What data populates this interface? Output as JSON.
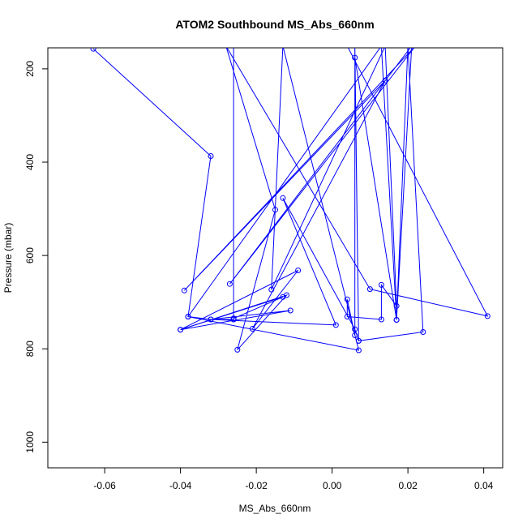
{
  "chart_data": {
    "type": "line",
    "title": "ATOM2 Southbound MS_Abs_660nm",
    "xlabel": "MS_Abs_660nm",
    "ylabel": "Pressure (mbar)",
    "xlim": [
      -0.075,
      0.045
    ],
    "ylim": [
      1055,
      155
    ],
    "y_reversed": true,
    "grid": false,
    "legend": "none",
    "x_ticks": [
      -0.06,
      -0.04,
      -0.02,
      0.0,
      0.02,
      0.04
    ],
    "x_tick_labels": [
      "-0.06",
      "-0.04",
      "-0.02",
      "0.00",
      "0.02",
      "0.04"
    ],
    "y_ticks": [
      200,
      400,
      600,
      800,
      1000
    ],
    "y_tick_labels": [
      "200",
      "400",
      "600",
      "800",
      "1000"
    ],
    "series": [
      {
        "color": "#0000ff",
        "marker": "open-circle",
        "points": [
          [
            -0.063,
            157
          ],
          [
            -0.032,
            387
          ],
          [
            -0.038,
            731
          ],
          [
            -0.032,
            737
          ],
          [
            -0.026,
            737
          ],
          [
            -0.026,
            151
          ],
          [
            -0.026,
            737
          ],
          [
            -0.026,
            735
          ],
          [
            -0.013,
            689
          ],
          [
            -0.04,
            759
          ],
          [
            -0.011,
            718
          ],
          [
            -0.032,
            737
          ],
          [
            0.001,
            749
          ],
          [
            -0.013,
            477
          ],
          [
            0.006,
            758
          ],
          [
            0.007,
            783
          ],
          [
            0.006,
            151
          ],
          [
            0.006,
            771
          ],
          [
            0.004,
            694
          ],
          [
            0.004,
            731
          ],
          [
            0.013,
            737
          ],
          [
            0.013,
            663
          ],
          [
            0.017,
            708
          ],
          [
            0.014,
            151
          ],
          [
            -0.016,
            673
          ],
          [
            -0.013,
            151
          ],
          [
            0.007,
            803
          ],
          [
            -0.038,
            731
          ],
          [
            0.013,
            151
          ],
          [
            0.017,
            738
          ],
          [
            0.02,
            151
          ],
          [
            0.024,
            764
          ],
          [
            0.007,
            783
          ],
          [
            0.006,
            176
          ],
          [
            0.017,
            738
          ],
          [
            0.021,
            151
          ],
          [
            -0.027,
            661
          ],
          [
            0.022,
            151
          ],
          [
            -0.039,
            675
          ],
          [
            0.014,
            225
          ],
          [
            -0.021,
            757
          ],
          [
            -0.009,
            632
          ],
          [
            -0.04,
            759
          ],
          [
            -0.012,
            685
          ],
          [
            -0.025,
            802
          ],
          [
            -0.015,
            502
          ],
          [
            -0.028,
            151
          ],
          [
            0.01,
            672
          ],
          [
            0.041,
            730
          ],
          [
            0.004,
            151
          ]
        ]
      }
    ]
  }
}
